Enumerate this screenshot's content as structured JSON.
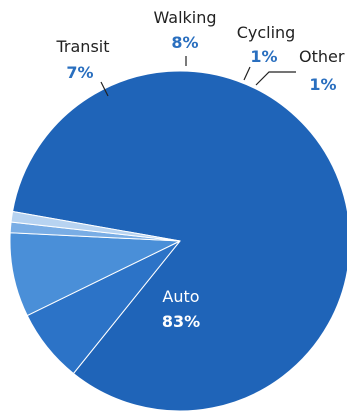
{
  "chart_data": {
    "type": "pie",
    "slices": [
      {
        "label": "Auto",
        "percent_label": "83%",
        "value": 83,
        "color": "#1f64b8",
        "text_color": "#ffffff",
        "pct_color": "#ffffff"
      },
      {
        "label": "Transit",
        "percent_label": "7%",
        "value": 7,
        "color": "#2c73c7",
        "text_color": "#222222",
        "pct_color": "#2a6fbf"
      },
      {
        "label": "Walking",
        "percent_label": "8%",
        "value": 8,
        "color": "#4a8fd8",
        "text_color": "#222222",
        "pct_color": "#2a6fbf"
      },
      {
        "label": "Cycling",
        "percent_label": "1%",
        "value": 1,
        "color": "#79ade5",
        "text_color": "#222222",
        "pct_color": "#2a6fbf"
      },
      {
        "label": "Other",
        "percent_label": "1%",
        "value": 1,
        "color": "#b7d3f1",
        "text_color": "#222222",
        "pct_color": "#2a6fbf"
      }
    ],
    "start_angle_clockwise_from_top_deg": 80,
    "slice_separator_color": "#ffffff",
    "legend": "none"
  }
}
